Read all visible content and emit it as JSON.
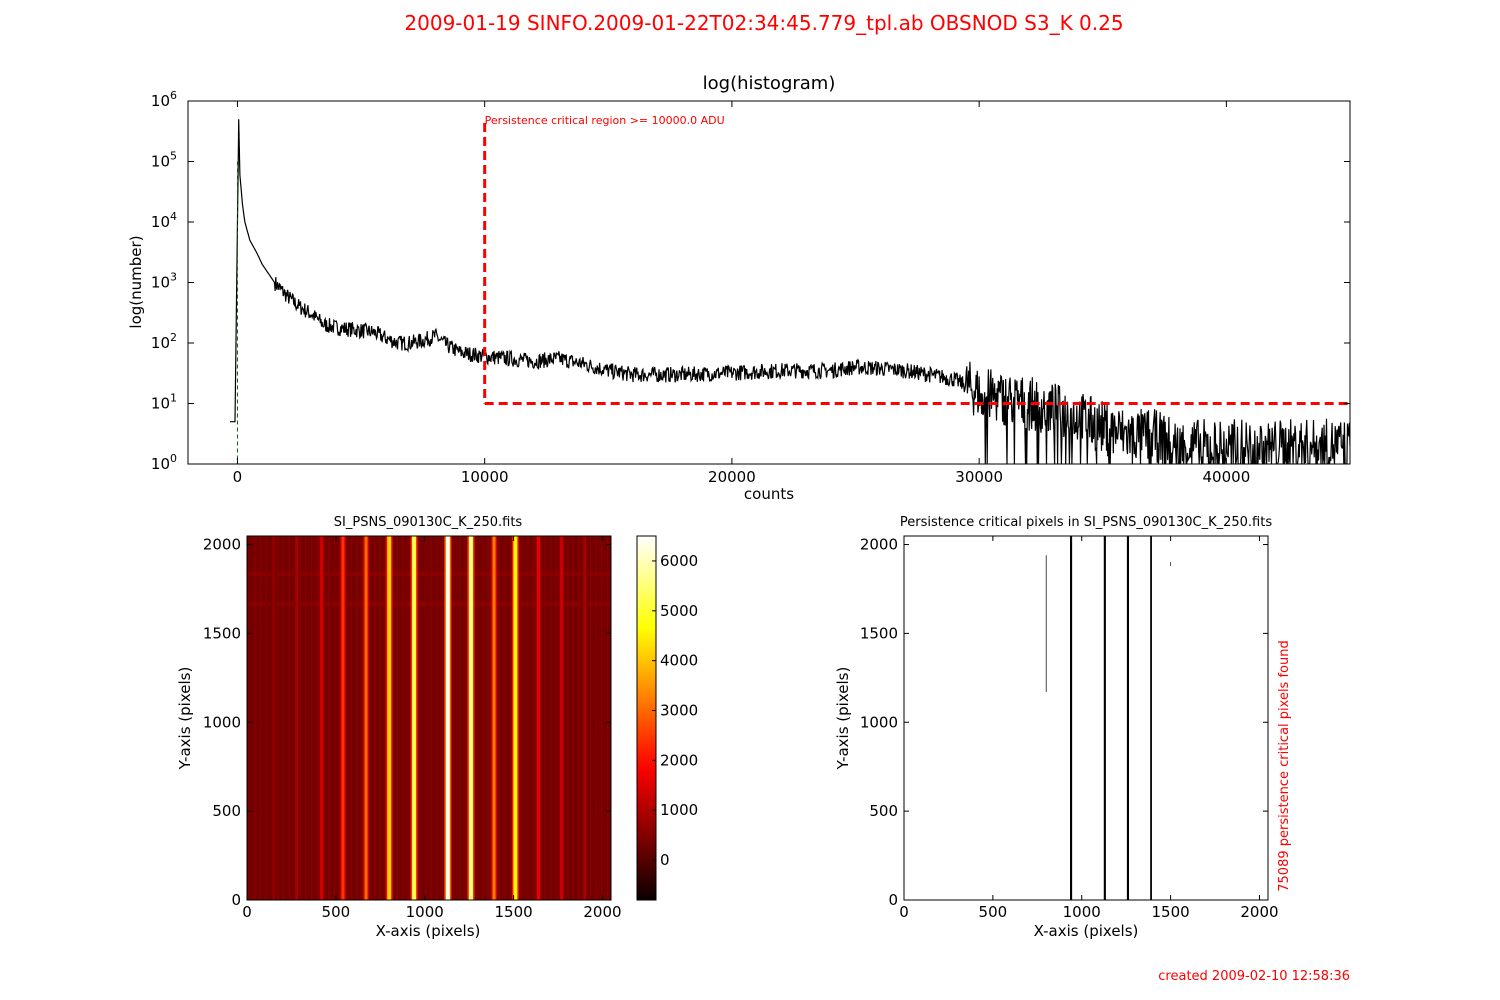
{
  "header": {
    "title": "2009-01-19   SINFO.2009-01-22T02:34:45.779_tpl.ab   OBSNOD   S3_K   0.25",
    "footer": "created   2009-02-10    12:58:36",
    "color": "#ff0000"
  },
  "chart_data": [
    {
      "type": "line",
      "title": "log(histogram)",
      "xlabel": "counts",
      "ylabel": "log(number)",
      "xlim": [
        -2000,
        45000
      ],
      "ylim": [
        1,
        1000000
      ],
      "yscale": "log",
      "x_ticks": [
        0,
        10000,
        20000,
        30000,
        40000
      ],
      "x_tick_labels": [
        "0",
        "10000",
        "20000",
        "30000",
        "40000"
      ],
      "y_ticks": [
        1,
        10,
        100,
        1000,
        10000,
        100000,
        1000000
      ],
      "y_tick_labels": [
        {
          "b": "10",
          "e": "0"
        },
        {
          "b": "10",
          "e": "1"
        },
        {
          "b": "10",
          "e": "2"
        },
        {
          "b": "10",
          "e": "3"
        },
        {
          "b": "10",
          "e": "4"
        },
        {
          "b": "10",
          "e": "5"
        },
        {
          "b": "10",
          "e": "6"
        }
      ],
      "series": [
        {
          "color": "#000000",
          "x": [
            -300,
            -100,
            0,
            50,
            100,
            200,
            300,
            500,
            800,
            1000,
            1500,
            2000,
            2500,
            3000,
            3500,
            4000,
            5000,
            5500,
            6000,
            6500,
            7000,
            7500,
            8000,
            8500,
            9000,
            10000,
            11000,
            12000,
            13000,
            14000,
            15000,
            16000,
            17000,
            18000,
            20000,
            22000,
            24000,
            25000,
            26000,
            27000,
            28000,
            29000,
            30000,
            31000,
            32000,
            33000,
            34000,
            35000,
            36000,
            37000,
            38000,
            40000,
            42000,
            44000,
            45000
          ],
          "y": [
            5,
            5,
            8000,
            500000,
            60000,
            20000,
            10000,
            5000,
            3000,
            2000,
            1000,
            600,
            400,
            300,
            200,
            180,
            160,
            150,
            120,
            100,
            100,
            110,
            130,
            90,
            70,
            60,
            55,
            50,
            55,
            45,
            35,
            30,
            30,
            30,
            32,
            35,
            35,
            40,
            38,
            35,
            30,
            25,
            15,
            12,
            10,
            8,
            6,
            4,
            3,
            3,
            2,
            2,
            2,
            2,
            2
          ]
        }
      ],
      "threshold": {
        "label": "Persistence critical region >= 10000.0 ADU",
        "x": 10000,
        "y": 10,
        "color": "#ff0000"
      },
      "annotation_color_line": "#006400"
    },
    {
      "type": "heatmap",
      "title": "SI_PSNS_090130C_K_250.fits",
      "xlabel": "X-axis (pixels)",
      "ylabel": "Y-axis (pixels)",
      "xlim": [
        0,
        2048
      ],
      "ylim": [
        0,
        2048
      ],
      "x_tick_labels": [
        "0",
        "500",
        "1000",
        "1500",
        "2000"
      ],
      "y_tick_labels": [
        "0",
        "500",
        "1000",
        "1500",
        "2000"
      ],
      "colorbar_range": [
        -800,
        6500
      ],
      "colorbar_ticks": [
        0,
        1000,
        2000,
        3000,
        4000,
        5000,
        6000
      ],
      "colorbar_tick_labels": [
        "0",
        "1000",
        "2000",
        "3000",
        "4000",
        "5000",
        "6000"
      ],
      "colormap": "hot",
      "bright_columns": [
        {
          "x": 150,
          "v": 700
        },
        {
          "x": 280,
          "v": 900
        },
        {
          "x": 420,
          "v": 1400
        },
        {
          "x": 540,
          "v": 2400
        },
        {
          "x": 670,
          "v": 3000
        },
        {
          "x": 800,
          "v": 4200
        },
        {
          "x": 940,
          "v": 5200
        },
        {
          "x": 1130,
          "v": 6300
        },
        {
          "x": 1260,
          "v": 5600
        },
        {
          "x": 1390,
          "v": 3200
        },
        {
          "x": 1510,
          "v": 4600
        },
        {
          "x": 1640,
          "v": 1600
        },
        {
          "x": 1770,
          "v": 1300
        },
        {
          "x": 1900,
          "v": 900
        }
      ]
    },
    {
      "type": "scatter",
      "title": "Persistence critical pixels in SI_PSNS_090130C_K_250.fits",
      "xlabel": "X-axis (pixels)",
      "ylabel": "Y-axis (pixels)",
      "xlim": [
        0,
        2048
      ],
      "ylim": [
        0,
        2048
      ],
      "x_tick_labels": [
        "0",
        "500",
        "1000",
        "1500",
        "2000"
      ],
      "y_tick_labels": [
        "0",
        "500",
        "1000",
        "1500",
        "2000"
      ],
      "side_label": "75089 persistence critical pixels found",
      "columns": [
        {
          "x": 800,
          "y0": 1170,
          "y1": 1940,
          "w": 4
        },
        {
          "x": 940,
          "y0": 0,
          "y1": 2048,
          "w": 12
        },
        {
          "x": 1130,
          "y0": 0,
          "y1": 2048,
          "w": 12
        },
        {
          "x": 1260,
          "y0": 0,
          "y1": 2048,
          "w": 12
        },
        {
          "x": 1390,
          "y0": 0,
          "y1": 2048,
          "w": 10
        },
        {
          "x": 1500,
          "y0": 1880,
          "y1": 1900,
          "w": 4
        }
      ]
    }
  ]
}
